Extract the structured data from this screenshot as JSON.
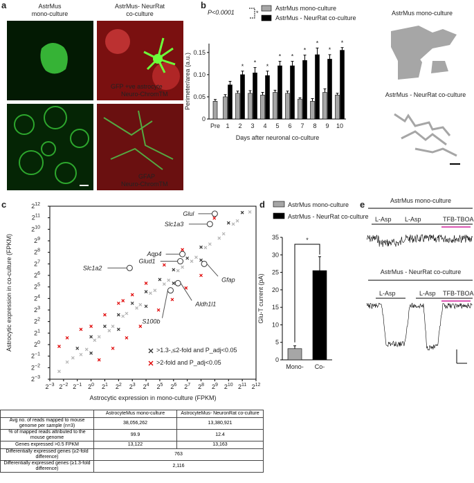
{
  "panel_labels": [
    "a",
    "b",
    "c",
    "d",
    "e"
  ],
  "panel_a": {
    "col_titles": [
      [
        "AstrMus",
        "mono-culture"
      ],
      [
        "AstrMus- NeurRat",
        "co-culture"
      ]
    ],
    "stain_labels": [
      [
        "GFP +ve astrocyte",
        "Neuro-ChromTM"
      ],
      [
        "GFAP",
        "Neuro-ChromTM"
      ]
    ]
  },
  "panel_b_images": {
    "titles": [
      "AstrMus mono-culture",
      "AstrMus - NeurRat co-culture"
    ]
  },
  "chart_data": [
    {
      "type": "bar",
      "ylabel": "Perimeter/area (a.u.)",
      "xlabel": "Days after neuronal co-culture",
      "categories": [
        "Pre",
        "1",
        "2",
        "3",
        "4",
        "5",
        "6",
        "7",
        "8",
        "9",
        "10"
      ],
      "series": [
        {
          "name": "AstrMus mono-culture",
          "color": "#a6a6a6",
          "values": [
            0.04,
            0.05,
            0.058,
            0.058,
            0.054,
            0.06,
            0.058,
            0.045,
            0.04,
            0.06,
            0.054
          ],
          "errors": [
            0.004,
            0.005,
            0.005,
            0.006,
            0.006,
            0.005,
            0.005,
            0.003,
            0.006,
            0.008,
            0.004
          ]
        },
        {
          "name": "AstrMus - NeurRat co-culture",
          "color": "#000000",
          "values": [
            null,
            0.077,
            0.1,
            0.104,
            0.098,
            0.12,
            0.12,
            0.132,
            0.145,
            0.135,
            0.155
          ],
          "errors": [
            null,
            0.008,
            0.008,
            0.012,
            0.01,
            0.01,
            0.01,
            0.012,
            0.015,
            0.01,
            0.006
          ]
        }
      ],
      "ylim": [
        0,
        0.17
      ],
      "yticks": [
        0,
        0.05,
        {
          "value": 0.1,
          "label": "0.10"
        },
        0.15
      ],
      "significance": "P<0.0001",
      "legend_star": "*",
      "stars": [
        null,
        null,
        "*",
        "*",
        "*",
        "*",
        "*",
        "*",
        "*",
        "*",
        "*"
      ]
    },
    {
      "type": "scatter",
      "xlabel": "Astrocytic expression in mono-culture (FPKM)",
      "ylabel": "Astrocytic expression in co-culture (FPKM)",
      "log_scale": true,
      "xlim": [
        0.125,
        4096
      ],
      "ylim": [
        0.125,
        4096
      ],
      "xticks": [
        {
          "value": 0.125,
          "label": "2",
          "sup": "−3"
        },
        {
          "value": 0.25,
          "label": "2",
          "sup": "−2"
        },
        {
          "value": 0.5,
          "label": "2",
          "sup": "−1"
        },
        {
          "value": 1,
          "label": "2",
          "sup": "0"
        },
        {
          "value": 2,
          "label": "2",
          "sup": "1"
        },
        {
          "value": 4,
          "label": "2",
          "sup": "2"
        },
        {
          "value": 8,
          "label": "2",
          "sup": "3"
        },
        {
          "value": 16,
          "label": "2",
          "sup": "4"
        },
        {
          "value": 32,
          "label": "2",
          "sup": "5"
        },
        {
          "value": 64,
          "label": "2",
          "sup": "6"
        },
        {
          "value": 128,
          "label": "2",
          "sup": "7"
        },
        {
          "value": 256,
          "label": "2",
          "sup": "8"
        },
        {
          "value": 512,
          "label": "2",
          "sup": "9"
        },
        {
          "value": 1024,
          "label": "2",
          "sup": "10"
        },
        {
          "value": 2048,
          "label": "2",
          "sup": "11"
        },
        {
          "value": 4096,
          "label": "2",
          "sup": "12"
        }
      ],
      "yticks": [
        {
          "value": 0.125,
          "label": "2",
          "sup": "−3"
        },
        {
          "value": 0.25,
          "label": "2",
          "sup": "−2"
        },
        {
          "value": 0.5,
          "label": "2",
          "sup": "−1"
        },
        {
          "value": 1,
          "label": "2",
          "sup": "0"
        },
        {
          "value": 2,
          "label": "2",
          "sup": "1"
        },
        {
          "value": 4,
          "label": "2",
          "sup": "2"
        },
        {
          "value": 8,
          "label": "2",
          "sup": "3"
        },
        {
          "value": 16,
          "label": "2",
          "sup": "4"
        },
        {
          "value": 32,
          "label": "2",
          "sup": "5"
        },
        {
          "value": 64,
          "label": "2",
          "sup": "6"
        },
        {
          "value": 128,
          "label": "2",
          "sup": "7"
        },
        {
          "value": 256,
          "label": "2",
          "sup": "8"
        },
        {
          "value": 512,
          "label": "2",
          "sup": "9"
        },
        {
          "value": 1024,
          "label": "2",
          "sup": "10"
        },
        {
          "value": 2048,
          "label": "2",
          "sup": "11"
        },
        {
          "value": 4096,
          "label": "2",
          "sup": "12"
        }
      ],
      "series": [
        {
          "color": "#b3b3b3",
          "x": [
            0.2,
            0.4,
            0.8,
            1.5,
            3,
            6,
            12,
            25,
            50,
            100,
            200,
            400,
            800,
            1600,
            3000,
            0.3,
            0.6,
            1.2,
            2.5,
            5,
            10,
            20,
            40,
            80,
            160,
            320,
            640,
            1300
          ],
          "y": [
            0.2,
            0.45,
            0.75,
            1.6,
            3,
            6.5,
            11,
            26,
            48,
            105,
            190,
            420,
            780,
            1700,
            2900,
            0.35,
            0.55,
            1.3,
            2.3,
            5.5,
            9,
            22,
            38,
            85,
            150,
            340,
            600,
            1400
          ]
        },
        {
          "name": ">1.3-,≤2-fold and P_adj<0.05",
          "color": "#333333",
          "x": [
            0.5,
            1,
            2,
            4,
            8,
            16,
            32,
            64,
            128,
            256,
            1,
            4,
            16,
            64,
            256,
            1024,
            2048
          ],
          "y": [
            0.8,
            1.6,
            3,
            6,
            12,
            24,
            50,
            90,
            180,
            350,
            0.6,
            2.5,
            10,
            40,
            160,
            1500,
            2800
          ]
        },
        {
          "name": ">2-fold and P_adj<0.05",
          "color": "#e00000",
          "x": [
            0.3,
            0.6,
            1,
            2,
            4,
            8,
            16,
            1.5,
            3,
            6,
            12,
            30,
            60,
            120,
            256,
            0.2,
            5,
            40,
            100,
            500
          ],
          "y": [
            1.5,
            2.5,
            3,
            6,
            12,
            20,
            40,
            0.4,
            0.8,
            1.5,
            3,
            8,
            15,
            30,
            64,
            0.9,
            14,
            120,
            300,
            2000
          ]
        }
      ],
      "genes": [
        {
          "name": "Glul",
          "x": 512,
          "y": 2600,
          "color": "#e00000"
        },
        {
          "name": "Slc1a3",
          "x": 400,
          "y": 1400,
          "color": "#e00000"
        },
        {
          "name": "Aqp4",
          "x": 100,
          "y": 230,
          "color": "#e00000"
        },
        {
          "name": "Glud1",
          "x": 90,
          "y": 150,
          "color": "#e00000"
        },
        {
          "name": "Slc1a2",
          "x": 7,
          "y": 100,
          "color": "#e00000"
        },
        {
          "name": "Gfap",
          "x": 300,
          "y": 128,
          "color": "#777777"
        },
        {
          "name": "Aldh1l1",
          "x": 80,
          "y": 40,
          "color": "#777777"
        },
        {
          "name": "S100b",
          "x": 55,
          "y": 26,
          "color": "#777777"
        }
      ]
    },
    {
      "type": "bar",
      "ylabel": "Glu-T current (pA)",
      "categories": [
        "Mono-",
        "Co-"
      ],
      "series": [
        {
          "name": "AstrMus mono-culture",
          "color": "#a6a6a6",
          "values": [
            3.2,
            null
          ],
          "errors": [
            0.8,
            null
          ]
        },
        {
          "name": "AstrMus - NeurRat co-culture",
          "color": "#000000",
          "values": [
            null,
            25.5
          ],
          "errors": [
            null,
            4.0
          ]
        }
      ],
      "ylim": [
        0,
        35
      ],
      "yticks": [
        0,
        5,
        10,
        15,
        20,
        25,
        30,
        35
      ],
      "significance": "*"
    }
  ],
  "panel_e": {
    "titles": [
      "AstrMus mono-culture",
      "AstrMus - NeurRat co-culture"
    ],
    "drug_labels": [
      [
        "L-Asp",
        "L-Asp",
        "TFB-TBOA"
      ],
      [
        "L-Asp",
        "L-Asp",
        "TFB-TBOA"
      ]
    ]
  },
  "table": {
    "header": [
      "AstrocyteMus mono-culture",
      "AstrocyteMus- NeuronRat co-culture"
    ],
    "rows": [
      [
        "Avg no. of reads mapped to mouse genome per sample (n=3)",
        "38,056,262",
        "13,380,921"
      ],
      [
        "% of mapped reads attributed to the mouse genome",
        "99.9",
        "12.4"
      ],
      [
        "Genes expressed >0.5 FPKM",
        "13,122",
        "13,163"
      ],
      [
        "Differentially expressed genes (≥2-fold difference)",
        "763"
      ],
      [
        "Differentially expressed genes (≥1.3-fold difference)",
        "2,116"
      ]
    ]
  }
}
